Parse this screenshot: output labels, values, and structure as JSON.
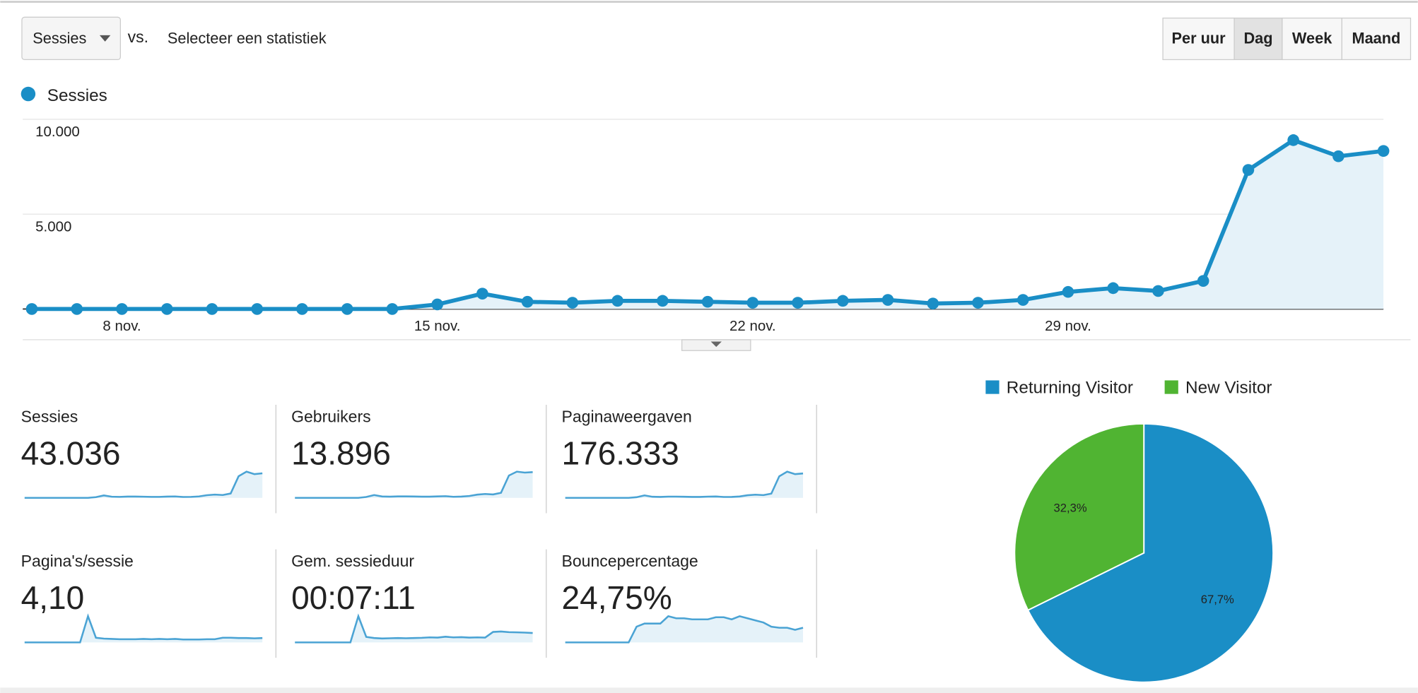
{
  "controls": {
    "metric": "Sessies",
    "vs": "vs.",
    "select": "Selecteer een statistiek",
    "periods": [
      "Per uur",
      "Dag",
      "Week",
      "Maand"
    ],
    "active_period": 1
  },
  "chart_data": [
    {
      "type": "line",
      "legend": "top-left",
      "categories": [
        null,
        null,
        "8 nov.",
        null,
        null,
        null,
        null,
        null,
        null,
        "15 nov.",
        null,
        null,
        null,
        null,
        null,
        null,
        "22 nov.",
        null,
        null,
        null,
        null,
        null,
        null,
        "29 nov.",
        null,
        null,
        null,
        null,
        null,
        null,
        null
      ],
      "series": [
        {
          "name": "Sessies",
          "color": "#1a8ec6",
          "values": [
            0,
            0,
            0,
            0,
            0,
            0,
            0,
            0,
            0,
            240,
            810,
            380,
            330,
            430,
            430,
            380,
            330,
            330,
            430,
            480,
            290,
            330,
            480,
            900,
            1100,
            950,
            1480,
            7330,
            8900,
            8050,
            8330
          ]
        }
      ],
      "ylim": [
        0,
        10000
      ],
      "yticks": [
        {
          "value": 5000,
          "label": "5.000"
        },
        {
          "value": 10000,
          "label": "10.000"
        }
      ],
      "grid": true
    },
    {
      "type": "pie",
      "legend": "top",
      "categories": [
        "Returning Visitor",
        "New Visitor"
      ],
      "values": [
        67.7,
        32.3
      ],
      "value_labels": [
        "67,7%",
        "32,3%"
      ],
      "colors": [
        "#1a8ec6",
        "#50b432"
      ]
    }
  ],
  "metrics": [
    {
      "label": "Sessies",
      "value": "43.036",
      "sparkline": [
        0,
        0,
        0,
        0,
        0,
        0,
        0,
        0,
        0,
        240,
        810,
        380,
        330,
        430,
        430,
        380,
        330,
        330,
        430,
        480,
        290,
        330,
        480,
        900,
        1100,
        950,
        1480,
        7330,
        8900,
        8050,
        8330
      ]
    },
    {
      "label": "Gebruikers",
      "value": "13.896",
      "sparkline": [
        0,
        0,
        0,
        0,
        0,
        0,
        0,
        0,
        0,
        90,
        290,
        140,
        120,
        150,
        150,
        140,
        120,
        120,
        150,
        170,
        110,
        130,
        190,
        330,
        400,
        350,
        520,
        2300,
        2700,
        2600,
        2650
      ]
    },
    {
      "label": "Paginaweergaven",
      "value": "176.333",
      "sparkline": [
        0,
        0,
        0,
        0,
        0,
        0,
        0,
        0,
        0,
        900,
        3400,
        1500,
        1300,
        1700,
        1700,
        1500,
        1300,
        1300,
        1700,
        1900,
        1200,
        1300,
        1900,
        3600,
        4400,
        3800,
        5900,
        30000,
        36500,
        33000,
        34000
      ]
    },
    {
      "label": "Pagina's/sessie",
      "value": "4,10",
      "sparkline": [
        0,
        0,
        0,
        0,
        0,
        0,
        0,
        0,
        9,
        1.6,
        1.3,
        1.2,
        1.1,
        1.1,
        1.1,
        1.2,
        1.1,
        1.2,
        1.1,
        1.2,
        1.0,
        1.0,
        1.0,
        1.1,
        1.1,
        1.6,
        1.6,
        1.5,
        1.5,
        1.4,
        1.5
      ]
    },
    {
      "label": "Gem. sessieduur",
      "value": "00:07:11",
      "sparkline": [
        0,
        0,
        0,
        0,
        0,
        0,
        0,
        0,
        1200,
        250,
        200,
        180,
        190,
        200,
        190,
        200,
        210,
        230,
        220,
        260,
        230,
        240,
        220,
        230,
        220,
        480,
        500,
        470,
        460,
        450,
        430
      ]
    },
    {
      "label": "Bouncepercentage",
      "value": "24,75%",
      "sparkline": [
        0,
        0,
        0,
        0,
        0,
        0,
        0,
        0,
        0,
        15,
        18,
        18,
        18,
        25,
        23,
        23,
        22,
        22,
        22,
        24,
        24,
        22,
        25,
        23,
        21,
        19,
        15,
        14,
        14,
        12,
        14
      ]
    }
  ]
}
